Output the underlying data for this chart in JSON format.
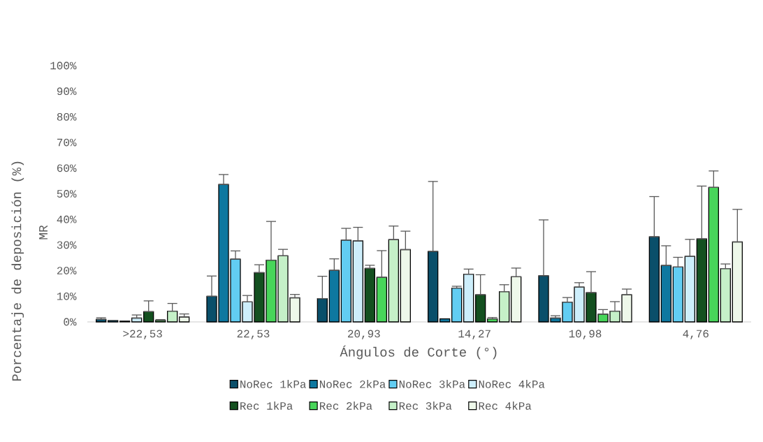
{
  "chart_data": {
    "type": "bar",
    "xlabel": "Ángulos de Corte (°)",
    "ylabel": "Porcentaje de deposición (%)",
    "annotations": [
      "MR"
    ],
    "categories": [
      ">22,53",
      "22,53",
      "20,93",
      "14,27",
      "10,98",
      "4,76"
    ],
    "ylim": [
      0,
      100
    ],
    "yticks": [
      {
        "value": 0,
        "label": "0%"
      },
      {
        "value": 10,
        "label": "10%"
      },
      {
        "value": 20,
        "label": "20%"
      },
      {
        "value": 30,
        "label": "30%"
      },
      {
        "value": 40,
        "label": "40%"
      },
      {
        "value": 50,
        "label": "50%"
      },
      {
        "value": 60,
        "label": "60%"
      },
      {
        "value": 70,
        "label": "70%"
      },
      {
        "value": 80,
        "label": "80%"
      },
      {
        "value": 90,
        "label": "90%"
      },
      {
        "value": 100,
        "label": "100%"
      }
    ],
    "legend": "bottom",
    "series": [
      {
        "name": "NoRec 1kPa",
        "color": "#0a4f6a",
        "values": [
          1.0,
          10.0,
          9.1,
          27.5,
          18.0,
          33.2
        ],
        "errors": [
          [
            1.0,
            1.6
          ],
          [
            10.0,
            17.9
          ],
          [
            9.1,
            17.8
          ],
          [
            27.5,
            54.8
          ],
          [
            18.0,
            39.8
          ],
          [
            33.2,
            48.9
          ]
        ]
      },
      {
        "name": "NoRec 2kPa",
        "color": "#0e78a0",
        "values": [
          0.5,
          53.6,
          20.1,
          1.2,
          1.5,
          22.0
        ],
        "errors": [
          null,
          [
            53.6,
            57.5
          ],
          [
            20.1,
            24.6
          ],
          null,
          [
            1.5,
            2.4
          ],
          [
            22.0,
            29.7
          ]
        ]
      },
      {
        "name": "NoRec 3kPa",
        "color": "#62cdf2",
        "values": [
          0.3,
          24.5,
          31.9,
          13.2,
          7.7,
          21.4
        ],
        "errors": [
          null,
          [
            24.5,
            27.7
          ],
          [
            31.9,
            36.5
          ],
          [
            13.2,
            13.9
          ],
          [
            7.7,
            9.5
          ],
          [
            21.4,
            25.2
          ]
        ]
      },
      {
        "name": "NoRec 4kPa",
        "color": "#cdeefb",
        "values": [
          1.5,
          7.8,
          31.6,
          18.6,
          13.6,
          25.6
        ],
        "errors": [
          [
            1.5,
            2.7
          ],
          [
            7.8,
            10.3
          ],
          [
            31.6,
            36.9
          ],
          [
            18.6,
            20.6
          ],
          [
            13.6,
            15.3
          ],
          [
            25.6,
            32.2
          ]
        ]
      },
      {
        "name": "Rec 1kPa",
        "color": "#145020",
        "values": [
          4.0,
          19.2,
          20.9,
          10.6,
          11.4,
          32.4
        ],
        "errors": [
          [
            4.0,
            8.2
          ],
          [
            19.2,
            22.3
          ],
          [
            20.9,
            22.1
          ],
          [
            10.6,
            18.4
          ],
          [
            11.4,
            19.6
          ],
          [
            32.4,
            53.0
          ]
        ]
      },
      {
        "name": "Rec 2kPa",
        "color": "#48d55a",
        "values": [
          0.6,
          24.1,
          17.4,
          1.2,
          3.0,
          52.5
        ],
        "errors": [
          [
            0.6,
            0.9
          ],
          [
            24.1,
            39.2
          ],
          [
            17.4,
            27.8
          ],
          [
            1.2,
            1.7
          ],
          [
            3.0,
            4.8
          ],
          [
            52.5,
            58.9
          ]
        ]
      },
      {
        "name": "Rec 3kPa",
        "color": "#c5f0c8",
        "values": [
          4.2,
          25.8,
          32.1,
          11.8,
          4.2,
          20.8
        ],
        "errors": [
          [
            4.2,
            7.2
          ],
          [
            25.8,
            28.3
          ],
          [
            32.1,
            37.4
          ],
          [
            11.8,
            14.5
          ],
          [
            4.2,
            7.9
          ],
          [
            20.8,
            22.6
          ]
        ]
      },
      {
        "name": "Rec 4kPa",
        "color": "#eef8ea",
        "values": [
          1.9,
          9.4,
          28.2,
          17.6,
          10.6,
          31.2
        ],
        "errors": [
          [
            1.9,
            3.1
          ],
          [
            9.4,
            10.7
          ],
          [
            28.2,
            35.4
          ],
          [
            17.6,
            21.0
          ],
          [
            10.6,
            12.8
          ],
          [
            31.2,
            43.9
          ]
        ]
      }
    ]
  }
}
